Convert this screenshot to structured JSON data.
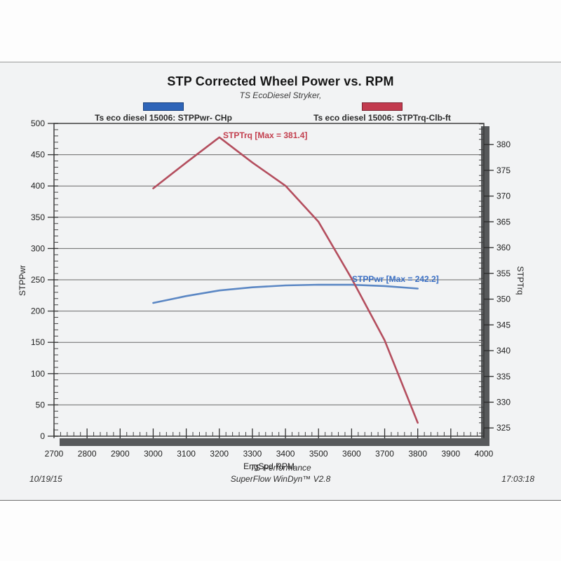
{
  "page": {
    "footer_left": "10/19/15",
    "footer_center_line1": "TS Performance",
    "footer_center_line2": "SuperFlow WinDyn™ V2.8",
    "footer_right": "17:03:18"
  },
  "legend": {
    "power": {
      "label": "Ts eco diesel 15006: STPPwr- CHp",
      "swatch_color": "#2e64b8",
      "swatch_border": "#173f7d"
    },
    "torque": {
      "label": "Ts eco diesel 15006: STPTrq-Clb-ft",
      "swatch_color": "#c23a4e",
      "swatch_border": "#7e2433"
    }
  },
  "chart_data": {
    "type": "line",
    "title": "STP Corrected Wheel Power vs. RPM",
    "subtitle": "TS EcoDiesel Stryker,",
    "xlabel": "EngSpd  RPM",
    "grid": "horizontal-only",
    "x": [
      3000,
      3100,
      3200,
      3300,
      3400,
      3500,
      3600,
      3700,
      3800
    ],
    "x_axis": {
      "min": 2700,
      "max": 4000,
      "minor_step": 20,
      "ticks": [
        2700,
        2800,
        2900,
        3000,
        3100,
        3200,
        3300,
        3400,
        3500,
        3600,
        3700,
        3800,
        3900,
        4000
      ]
    },
    "left_axis": {
      "label": "STPPwr",
      "min": 0,
      "max": 500,
      "minor_step": 10,
      "ticks": [
        0,
        50,
        100,
        150,
        200,
        250,
        300,
        350,
        400,
        450,
        500
      ]
    },
    "right_axis": {
      "label": "STPTrq",
      "min": 323.4,
      "max": 384.1,
      "minor_step": 1,
      "ticks": [
        325,
        330,
        335,
        340,
        345,
        350,
        355,
        360,
        365,
        370,
        375,
        380
      ]
    },
    "series": [
      {
        "name": "STPPwr",
        "unit": "CHp",
        "axis": "left",
        "color": "#5b87c4",
        "max": 242.2,
        "annotation": "STPPwr [Max = 242.2]",
        "annotation_color": "#3a6fc4",
        "values": [
          213,
          224,
          233,
          238,
          241,
          242.2,
          242,
          240,
          236
        ]
      },
      {
        "name": "STPTrq",
        "unit": "Clb-ft",
        "axis": "right",
        "color": "#b44e5e",
        "max": 381.4,
        "annotation": "STPTrq [Max = 381.4]",
        "annotation_color": "#c3404f",
        "values": [
          371.5,
          376.5,
          381.4,
          376.5,
          372,
          365,
          354,
          342,
          326
        ]
      }
    ]
  }
}
